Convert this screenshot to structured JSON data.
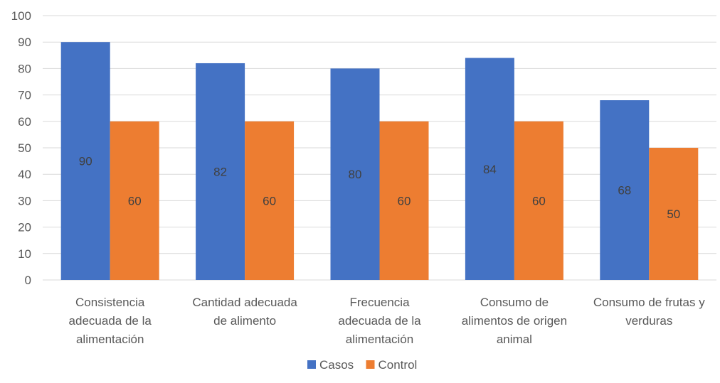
{
  "chart_data": {
    "type": "bar",
    "title": "",
    "xlabel": "",
    "ylabel": "",
    "ylim": [
      0,
      100
    ],
    "yticks": [
      0,
      10,
      20,
      30,
      40,
      50,
      60,
      70,
      80,
      90,
      100
    ],
    "grid": true,
    "legend_position": "bottom",
    "categories": [
      [
        "Consistencia",
        "adecuada de la",
        "alimentación"
      ],
      [
        "Cantidad adecuada",
        "de alimento"
      ],
      [
        "Frecuencia",
        "adecuada de la",
        "alimentación"
      ],
      [
        "Consumo de",
        "alimentos de origen",
        "animal"
      ],
      [
        "Consumo de frutas y",
        "verduras"
      ]
    ],
    "series": [
      {
        "name": "Casos",
        "color": "#4472C4",
        "values": [
          90,
          82,
          80,
          84,
          68
        ]
      },
      {
        "name": "Control",
        "color": "#ED7D31",
        "values": [
          60,
          60,
          60,
          60,
          50
        ]
      }
    ]
  }
}
